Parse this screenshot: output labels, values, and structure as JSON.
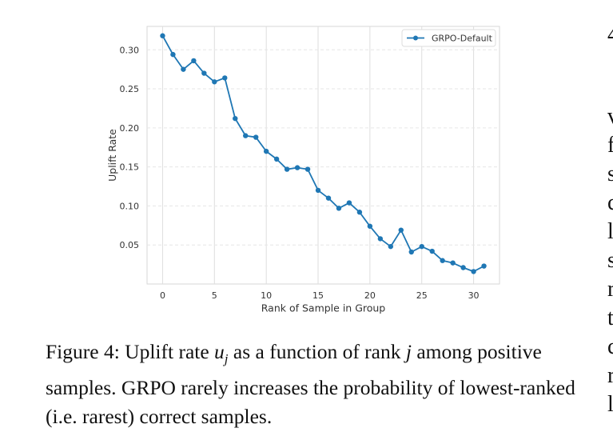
{
  "chart_data": {
    "type": "line",
    "xlabel": "Rank of Sample in Group",
    "ylabel": "Uplift Rate",
    "xlim": [
      -1.5,
      32.5
    ],
    "ylim": [
      0.0,
      0.33
    ],
    "x_ticks": [
      0,
      5,
      10,
      15,
      20,
      25,
      30
    ],
    "y_ticks": [
      0.05,
      0.1,
      0.15,
      0.2,
      0.25,
      0.3
    ],
    "x_tick_labels": [
      "0",
      "5",
      "10",
      "15",
      "20",
      "25",
      "30"
    ],
    "y_tick_labels": [
      "0.05",
      "0.10",
      "0.15",
      "0.20",
      "0.25",
      "0.30"
    ],
    "grid": true,
    "legend_position": "top-right",
    "series": [
      {
        "name": "GRPO-Default",
        "color": "#1f77b4",
        "marker": "circle",
        "x": [
          0,
          1,
          2,
          3,
          4,
          5,
          6,
          7,
          8,
          9,
          10,
          11,
          12,
          13,
          14,
          15,
          16,
          17,
          18,
          19,
          20,
          21,
          22,
          23,
          24,
          25,
          26,
          27,
          28,
          29,
          30,
          31
        ],
        "y": [
          0.318,
          0.294,
          0.275,
          0.286,
          0.27,
          0.259,
          0.264,
          0.212,
          0.19,
          0.188,
          0.17,
          0.16,
          0.147,
          0.149,
          0.147,
          0.12,
          0.11,
          0.097,
          0.104,
          0.092,
          0.074,
          0.058,
          0.048,
          0.069,
          0.041,
          0.048,
          0.042,
          0.03,
          0.027,
          0.021,
          0.016,
          0.023
        ]
      }
    ]
  },
  "caption": {
    "prefix": "Figure 4: Uplift rate ",
    "u": "u",
    "j_sub": "j",
    "mid": " as a function of rank ",
    "j": "j",
    "rest": " among positive samples. GRPO rarely increases the probability of lowest-ranked (i.e. rarest) correct samples."
  },
  "side_letters": [
    "4",
    "",
    "",
    "v",
    "f",
    "s",
    "c",
    "l",
    "s",
    "r",
    "t",
    "c",
    "r",
    "l"
  ]
}
